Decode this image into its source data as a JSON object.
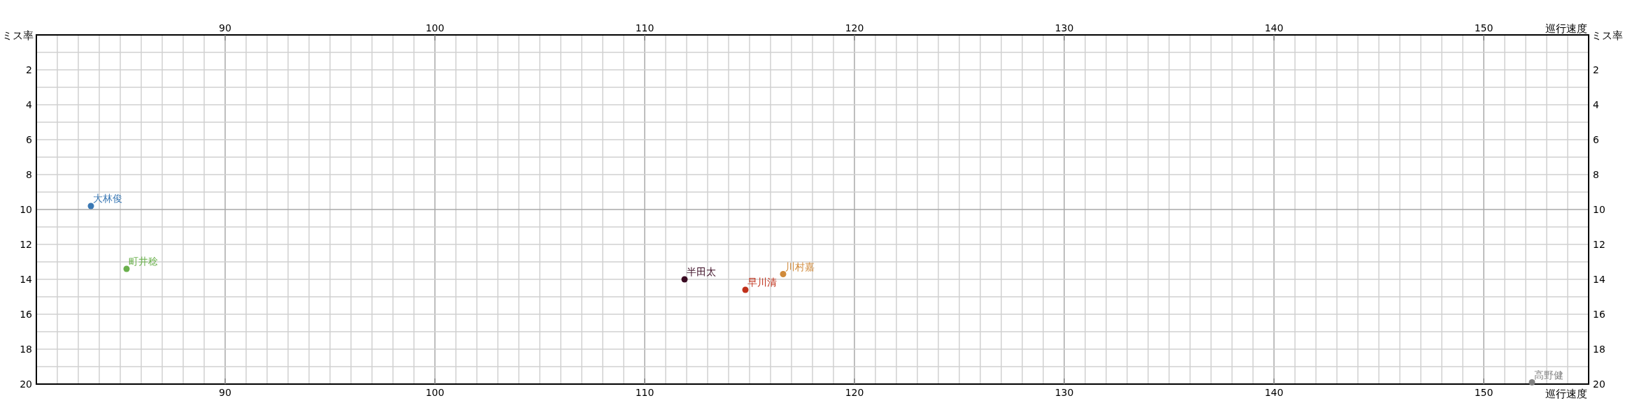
{
  "chart_data": {
    "type": "scatter",
    "xlabel": "巡行速度",
    "ylabel": "ミス率",
    "x2label": "巡行速度",
    "y2label": "ミス率",
    "xlim": [
      81,
      155
    ],
    "xticks": [
      90,
      100,
      110,
      120,
      130,
      140,
      150
    ],
    "x2lim": [
      81,
      155
    ],
    "x2ticks": [
      90,
      100,
      110,
      120,
      130,
      140,
      150
    ],
    "ylim": [
      20,
      0
    ],
    "yticks": [
      2,
      4,
      6,
      8,
      10,
      12,
      14,
      16,
      18,
      20
    ],
    "y2lim": [
      20,
      0
    ],
    "y2ticks": [
      2,
      4,
      6,
      8,
      10,
      12,
      14,
      16,
      18,
      20
    ],
    "grid": true,
    "marker": "circle",
    "series": [
      {
        "name": "大林俊",
        "color": "#3a78b4",
        "x": [
          83.6
        ],
        "values": [
          9.8
        ]
      },
      {
        "name": "町井稔",
        "color": "#6ab04c",
        "x": [
          85.3
        ],
        "values": [
          13.4
        ]
      },
      {
        "name": "半田太",
        "color": "#3a0a22",
        "x": [
          111.9
        ],
        "values": [
          14.0
        ]
      },
      {
        "name": "早川清",
        "color": "#c0301a",
        "x": [
          114.8
        ],
        "values": [
          14.6
        ]
      },
      {
        "name": "川村嘉",
        "color": "#d08a3a",
        "x": [
          116.6
        ],
        "values": [
          13.7
        ]
      },
      {
        "name": "高野健",
        "color": "#808080",
        "x": [
          152.3
        ],
        "values": [
          19.9
        ]
      }
    ]
  }
}
